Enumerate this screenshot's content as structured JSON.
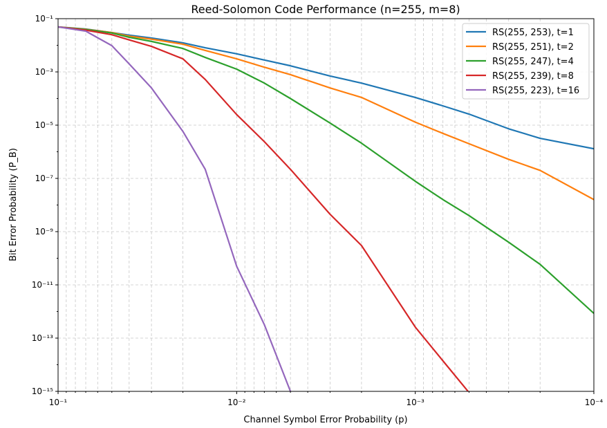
{
  "chart_data": {
    "type": "line",
    "title": "Reed-Solomon Code Performance (n=255, m=8)",
    "xlabel": "Channel Symbol Error Probability (p)",
    "ylabel": "Bit Error Probability (P_B)",
    "xscale": "log",
    "yscale": "log",
    "grid": true,
    "legend": "upper right",
    "xlim": [
      0.1,
      0.0001
    ],
    "ylim": [
      1e-15,
      0.1
    ],
    "xticks": [
      {
        "value": 0.1,
        "label": "10⁻¹"
      },
      {
        "value": 0.01,
        "label": "10⁻²"
      },
      {
        "value": 0.001,
        "label": "10⁻³"
      },
      {
        "value": 0.0001,
        "label": "10⁻⁴"
      }
    ],
    "xminorticks": [
      0.09,
      0.08,
      0.07,
      0.06,
      0.05,
      0.04,
      0.03,
      0.02,
      0.009,
      0.008,
      0.007,
      0.006,
      0.005,
      0.004,
      0.003,
      0.002,
      0.0009,
      0.0008,
      0.0007,
      0.0006,
      0.0005,
      0.0004,
      0.0003,
      0.0002
    ],
    "yticks": [
      {
        "value": 1e-15,
        "label": "10⁻¹⁵"
      },
      {
        "value": 1e-13,
        "label": "10⁻¹³"
      },
      {
        "value": 1e-11,
        "label": "10⁻¹¹"
      },
      {
        "value": 1e-09,
        "label": "10⁻⁹"
      },
      {
        "value": 1e-07,
        "label": "10⁻⁷"
      },
      {
        "value": 1e-05,
        "label": "10⁻⁵"
      },
      {
        "value": 0.001,
        "label": "10⁻³"
      },
      {
        "value": 0.1,
        "label": "10⁻¹"
      }
    ],
    "yminorticks": [
      1e-14,
      1e-12,
      1e-10,
      1e-08,
      1e-06,
      0.0001,
      0.01
    ],
    "x": [
      0.1,
      0.07,
      0.05,
      0.04,
      0.03,
      0.02,
      0.015,
      0.01,
      0.007,
      0.005,
      0.003,
      0.002,
      0.001,
      0.0007,
      0.0005,
      0.0003,
      0.0002,
      0.0001
    ],
    "series": [
      {
        "name": "RS(255, 253), t=1",
        "color": "#1f77b4",
        "values": [
          0.049,
          0.041,
          0.03,
          0.024,
          0.0188,
          0.0124,
          0.0081,
          0.0048,
          0.0028,
          0.0017,
          0.0007,
          0.00038,
          0.00011,
          5.3e-05,
          2.6e-05,
          7.3e-06,
          3.2e-06,
          1.3e-06
        ]
      },
      {
        "name": "RS(255, 251), t=2",
        "color": "#ff7f0e",
        "values": [
          0.049,
          0.04,
          0.03,
          0.022,
          0.017,
          0.011,
          0.0064,
          0.0031,
          0.0015,
          0.00079,
          0.00025,
          0.00011,
          1.3e-05,
          4.9e-06,
          2e-06,
          5.2e-07,
          2e-07,
          1.6e-08
        ]
      },
      {
        "name": "RS(255, 247), t=4",
        "color": "#2ca02c",
        "values": [
          0.049,
          0.039,
          0.029,
          0.02,
          0.014,
          0.0076,
          0.0035,
          0.00127,
          0.00038,
          0.0001,
          1.2e-05,
          2.1e-06,
          7.8e-08,
          1.6e-08,
          4e-09,
          4e-10,
          5.9e-11,
          8.5e-13
        ]
      },
      {
        "name": "RS(255, 239), t=8",
        "color": "#d62728",
        "values": [
          0.049,
          0.037,
          0.025,
          0.016,
          0.0091,
          0.0031,
          0.00052,
          2.5e-05,
          2.4e-06,
          2.2e-07,
          4.5e-09,
          3e-10,
          2.6e-13,
          1.4e-14,
          9e-16,
          null,
          null,
          null
        ]
      },
      {
        "name": "RS(255, 223), t=16",
        "color": "#9467bd",
        "values": [
          0.049,
          0.034,
          0.0097,
          0.002,
          0.00025,
          5.8e-06,
          2.2e-07,
          5e-11,
          3.2e-13,
          1e-15,
          null,
          null,
          null,
          null,
          null,
          null,
          null,
          null
        ]
      }
    ]
  }
}
